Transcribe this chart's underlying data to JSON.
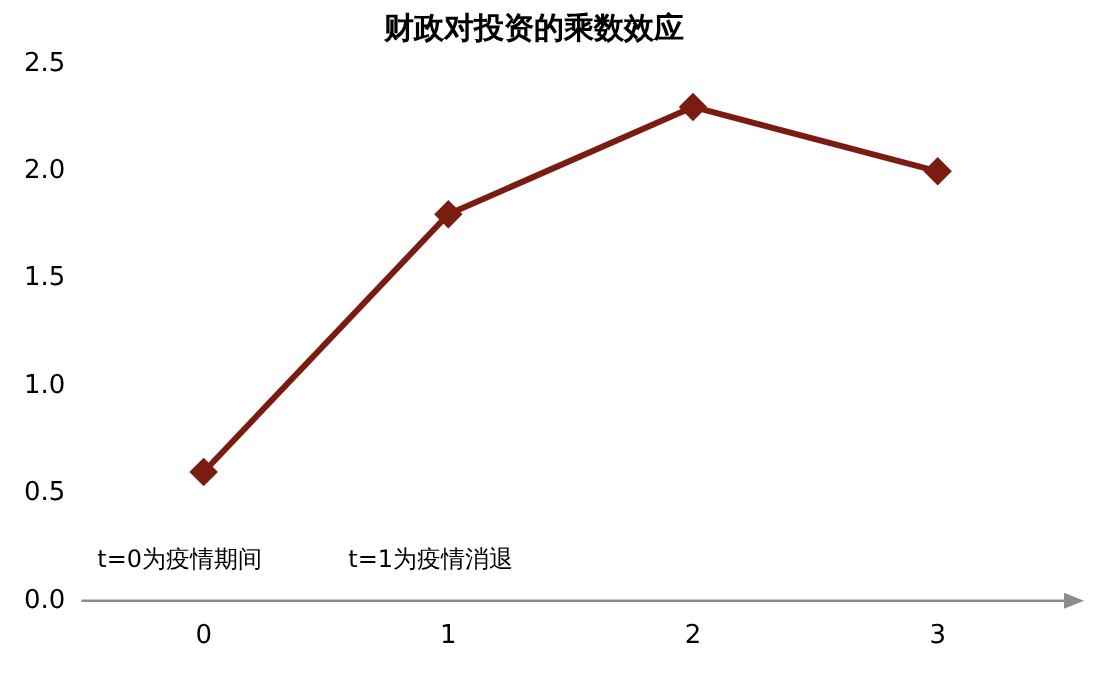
{
  "chart_data": {
    "type": "line",
    "title": "财政对投资的乘数效应",
    "categories": [
      "0",
      "1",
      "2",
      "3"
    ],
    "series": [
      {
        "color": "#7b1c10",
        "values": [
          0.6,
          1.8,
          2.3,
          2.0
        ]
      }
    ],
    "ylim": [
      0,
      2.5
    ],
    "yticks": [
      {
        "value": 0,
        "label": "0.0"
      },
      0.5,
      {
        "value": 1,
        "label": "1.0"
      },
      1.5,
      {
        "value": 2,
        "label": "2.0"
      },
      2.5
    ],
    "grid": false,
    "legend": false,
    "marker": "diamond",
    "line_style": "solid",
    "annotations": [
      "t=0为疫情期间",
      "t=1为疫情消退"
    ]
  }
}
